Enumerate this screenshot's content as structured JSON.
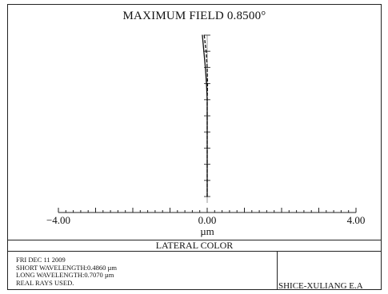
{
  "window": {
    "title": "MAXIMUM FIELD 0.8500°"
  },
  "chart_data": {
    "type": "line",
    "title": "MAXIMUM FIELD 0.8500°",
    "xlabel": "µm",
    "xlim": [
      -4.0,
      4.0
    ],
    "ylim": [
      0,
      1
    ],
    "x_tick_labels": [
      "−4.00",
      "0.00",
      "4.00"
    ],
    "grid": false,
    "series": [
      {
        "values": [
          {
            "x": 0.0,
            "y": 0.0
          },
          {
            "x": 0.0,
            "y": 0.1
          },
          {
            "x": 0.0,
            "y": 0.2
          },
          {
            "x": 0.0,
            "y": 0.3
          },
          {
            "x": 0.0,
            "y": 0.4
          },
          {
            "x": 0.0,
            "y": 0.5
          },
          {
            "x": 0.0,
            "y": 0.6
          },
          {
            "x": -0.02,
            "y": 0.7
          },
          {
            "x": -0.05,
            "y": 0.8
          },
          {
            "x": -0.09,
            "y": 0.9
          },
          {
            "x": -0.13,
            "y": 1.0
          }
        ]
      },
      {
        "values": [
          {
            "x": 0.0,
            "y": 0.0
          },
          {
            "x": 0.0,
            "y": 0.1
          },
          {
            "x": 0.0,
            "y": 0.2
          },
          {
            "x": 0.0,
            "y": 0.3
          },
          {
            "x": 0.0,
            "y": 0.4
          },
          {
            "x": 0.0,
            "y": 0.5
          },
          {
            "x": 0.0,
            "y": 0.6
          },
          {
            "x": 0.01,
            "y": 0.7
          },
          {
            "x": 0.0,
            "y": 0.8
          },
          {
            "x": -0.03,
            "y": 0.9
          },
          {
            "x": -0.08,
            "y": 1.0
          }
        ]
      }
    ],
    "colors": {
      "axis": "#222222",
      "series": "#111111",
      "ticks": "#444444"
    }
  },
  "caption": "LATERAL COLOR",
  "info": {
    "date": "FRI DEC 11  2009",
    "short_wavelength": "SHORT WAVELENGTH:0.4860 µm",
    "long_wavelength": "LONG WAVELENGTH:0.7070 µm",
    "rays": "REAL RAYS USED."
  },
  "designer": "SHICE-XULIANG  E.A"
}
